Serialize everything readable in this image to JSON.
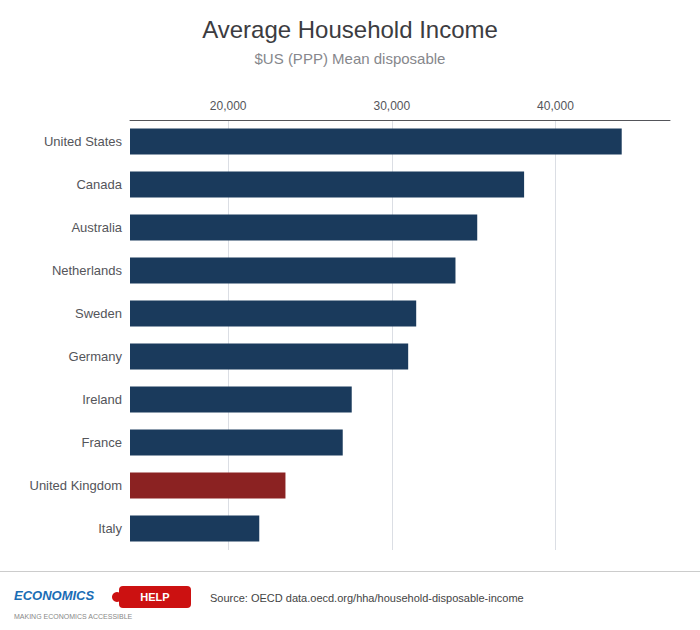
{
  "chart_data": {
    "type": "bar",
    "orientation": "horizontal",
    "title": "Average Household Income",
    "subtitle": "$US (PPP) Mean disposable",
    "categories": [
      "United States",
      "Canada",
      "Australia",
      "Netherlands",
      "Sweden",
      "Germany",
      "Ireland",
      "France",
      "United Kingdom",
      "Italy"
    ],
    "values": [
      44049,
      38084,
      35220,
      33890,
      31490,
      31000,
      27550,
      27000,
      23500,
      21900
    ],
    "colors": [
      "#1a3a5c",
      "#1a3a5c",
      "#1a3a5c",
      "#1a3a5c",
      "#1a3a5c",
      "#1a3a5c",
      "#1a3a5c",
      "#1a3a5c",
      "#8b2222",
      "#1a3a5c"
    ],
    "xlim": [
      14000,
      47000
    ],
    "xticks": [
      {
        "value": 20000,
        "label": "20,000"
      },
      {
        "value": 30000,
        "label": "30,000"
      },
      {
        "value": 40000,
        "label": "40,000"
      }
    ],
    "grid": true,
    "annotations": [
      "ECONOMICS",
      "HELP",
      "MAKING ECONOMICS ACCESSIBLE",
      "Source: OECD data.oecd.org/hha/household-disposable-income"
    ]
  }
}
